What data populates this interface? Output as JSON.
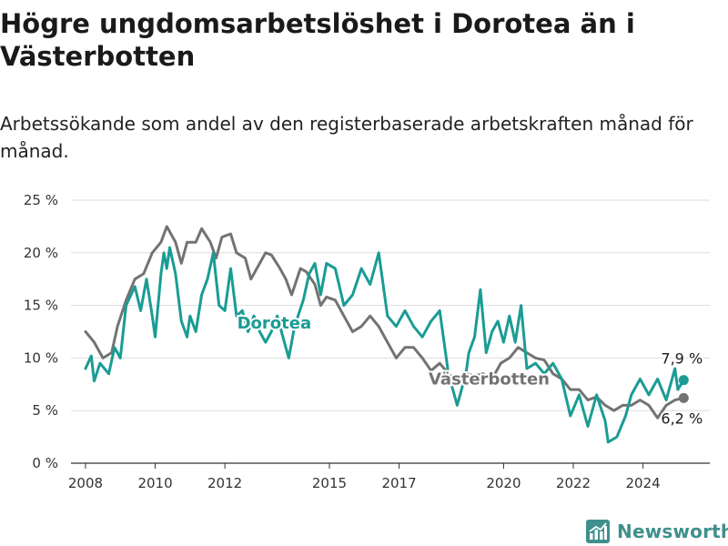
{
  "header": {
    "title": "Högre ungdomsarbetslöshet i Dorotea än i Västerbotten",
    "subtitle": "Arbetssökande som andel av den registerbaserade arbetskraften månad för månad."
  },
  "branding": {
    "name": "Newsworthy"
  },
  "chart_data": {
    "type": "line",
    "title": "Högre ungdomsarbetslöshet i Dorotea än i Västerbotten",
    "subtitle": "Arbetssökande som andel av den registerbaserade arbetskraften månad för månad.",
    "xlabel": "",
    "ylabel": "",
    "x_ticks": [
      "2008",
      "2010",
      "2012",
      "2015",
      "2017",
      "2020",
      "2022",
      "2024"
    ],
    "y_ticks": [
      "0 %",
      "5 %",
      "10 %",
      "15 %",
      "20 %",
      "25 %"
    ],
    "ylim": [
      0,
      25
    ],
    "xlim": [
      "2007-08",
      "2025-12"
    ],
    "grid": true,
    "legend": "inline labels",
    "series": [
      {
        "name": "Västerbotten",
        "color": "#737373",
        "end_label": "6,2 %",
        "points": [
          [
            "2008-01",
            12.5
          ],
          [
            "2008-04",
            11.5
          ],
          [
            "2008-07",
            10.0
          ],
          [
            "2008-10",
            10.5
          ],
          [
            "2008-12",
            13.0
          ],
          [
            "2009-03",
            15.5
          ],
          [
            "2009-06",
            17.5
          ],
          [
            "2009-09",
            18.0
          ],
          [
            "2009-12",
            20.0
          ],
          [
            "2010-03",
            21.0
          ],
          [
            "2010-05",
            22.5
          ],
          [
            "2010-08",
            21.0
          ],
          [
            "2010-10",
            19.0
          ],
          [
            "2010-12",
            21.0
          ],
          [
            "2011-03",
            21.0
          ],
          [
            "2011-05",
            22.3
          ],
          [
            "2011-08",
            21.0
          ],
          [
            "2011-10",
            19.5
          ],
          [
            "2011-12",
            21.5
          ],
          [
            "2012-03",
            21.8
          ],
          [
            "2012-05",
            20.0
          ],
          [
            "2012-08",
            19.5
          ],
          [
            "2012-10",
            17.5
          ],
          [
            "2012-12",
            18.5
          ],
          [
            "2013-03",
            20.0
          ],
          [
            "2013-05",
            19.8
          ],
          [
            "2013-08",
            18.5
          ],
          [
            "2013-10",
            17.5
          ],
          [
            "2013-12",
            16.0
          ],
          [
            "2014-03",
            18.5
          ],
          [
            "2014-05",
            18.2
          ],
          [
            "2014-08",
            17.0
          ],
          [
            "2014-10",
            15.0
          ],
          [
            "2014-12",
            15.8
          ],
          [
            "2015-03",
            15.5
          ],
          [
            "2015-06",
            14.0
          ],
          [
            "2015-09",
            12.5
          ],
          [
            "2015-12",
            13.0
          ],
          [
            "2016-03",
            14.0
          ],
          [
            "2016-06",
            13.0
          ],
          [
            "2016-09",
            11.5
          ],
          [
            "2016-12",
            10.0
          ],
          [
            "2017-03",
            11.0
          ],
          [
            "2017-06",
            11.0
          ],
          [
            "2017-09",
            10.0
          ],
          [
            "2017-12",
            8.8
          ],
          [
            "2018-03",
            9.5
          ],
          [
            "2018-06",
            8.5
          ],
          [
            "2018-09",
            7.7
          ],
          [
            "2018-12",
            8.5
          ],
          [
            "2019-03",
            8.3
          ],
          [
            "2019-06",
            8.5
          ],
          [
            "2019-09",
            8.0
          ],
          [
            "2019-12",
            9.5
          ],
          [
            "2020-03",
            10.0
          ],
          [
            "2020-06",
            11.0
          ],
          [
            "2020-09",
            10.5
          ],
          [
            "2020-12",
            10.0
          ],
          [
            "2021-03",
            9.8
          ],
          [
            "2021-06",
            8.5
          ],
          [
            "2021-09",
            8.0
          ],
          [
            "2021-12",
            7.0
          ],
          [
            "2022-03",
            7.0
          ],
          [
            "2022-06",
            6.0
          ],
          [
            "2022-09",
            6.3
          ],
          [
            "2022-12",
            5.5
          ],
          [
            "2023-03",
            5.0
          ],
          [
            "2023-06",
            5.5
          ],
          [
            "2023-09",
            5.5
          ],
          [
            "2023-12",
            6.0
          ],
          [
            "2024-03",
            5.5
          ],
          [
            "2024-06",
            4.3
          ],
          [
            "2024-09",
            5.5
          ],
          [
            "2024-12",
            6.0
          ],
          [
            "2025-03",
            6.2
          ]
        ]
      },
      {
        "name": "Dorotea",
        "color": "#1a9c94",
        "end_label": "7,9 %",
        "points": [
          [
            "2008-01",
            9.0
          ],
          [
            "2008-03",
            10.2
          ],
          [
            "2008-04",
            7.8
          ],
          [
            "2008-06",
            9.5
          ],
          [
            "2008-09",
            8.5
          ],
          [
            "2008-11",
            11.0
          ],
          [
            "2009-01",
            10.0
          ],
          [
            "2009-03",
            15.0
          ],
          [
            "2009-06",
            16.8
          ],
          [
            "2009-08",
            14.5
          ],
          [
            "2009-10",
            17.5
          ],
          [
            "2009-12",
            14.0
          ],
          [
            "2010-01",
            12.0
          ],
          [
            "2010-03",
            18.0
          ],
          [
            "2010-04",
            20.0
          ],
          [
            "2010-05",
            18.5
          ],
          [
            "2010-06",
            20.5
          ],
          [
            "2010-08",
            18.0
          ],
          [
            "2010-10",
            13.5
          ],
          [
            "2010-12",
            12.0
          ],
          [
            "2011-01",
            14.0
          ],
          [
            "2011-03",
            12.5
          ],
          [
            "2011-05",
            16.0
          ],
          [
            "2011-07",
            17.5
          ],
          [
            "2011-09",
            20.0
          ],
          [
            "2011-11",
            15.0
          ],
          [
            "2012-01",
            14.5
          ],
          [
            "2012-03",
            18.5
          ],
          [
            "2012-05",
            14.0
          ],
          [
            "2012-07",
            14.5
          ],
          [
            "2012-09",
            12.5
          ],
          [
            "2012-11",
            14.0
          ],
          [
            "2013-01",
            12.5
          ],
          [
            "2013-03",
            11.5
          ],
          [
            "2013-05",
            12.5
          ],
          [
            "2013-07",
            14.0
          ],
          [
            "2013-09",
            12.0
          ],
          [
            "2013-11",
            10.0
          ],
          [
            "2014-01",
            13.0
          ],
          [
            "2014-04",
            15.5
          ],
          [
            "2014-06",
            18.0
          ],
          [
            "2014-08",
            19.0
          ],
          [
            "2014-10",
            16.0
          ],
          [
            "2014-12",
            19.0
          ],
          [
            "2015-03",
            18.5
          ],
          [
            "2015-06",
            15.0
          ],
          [
            "2015-09",
            16.0
          ],
          [
            "2015-12",
            18.5
          ],
          [
            "2016-03",
            17.0
          ],
          [
            "2016-06",
            20.0
          ],
          [
            "2016-09",
            14.0
          ],
          [
            "2016-12",
            13.0
          ],
          [
            "2017-03",
            14.5
          ],
          [
            "2017-06",
            13.0
          ],
          [
            "2017-09",
            12.0
          ],
          [
            "2017-12",
            13.5
          ],
          [
            "2018-03",
            14.5
          ],
          [
            "2018-06",
            8.5
          ],
          [
            "2018-09",
            5.5
          ],
          [
            "2018-12",
            8.5
          ],
          [
            "2019-01",
            10.5
          ],
          [
            "2019-03",
            12.0
          ],
          [
            "2019-05",
            16.5
          ],
          [
            "2019-07",
            10.5
          ],
          [
            "2019-09",
            12.5
          ],
          [
            "2019-11",
            13.5
          ],
          [
            "2020-01",
            11.5
          ],
          [
            "2020-03",
            14.0
          ],
          [
            "2020-05",
            11.5
          ],
          [
            "2020-07",
            15.0
          ],
          [
            "2020-09",
            9.0
          ],
          [
            "2020-12",
            9.5
          ],
          [
            "2021-03",
            8.5
          ],
          [
            "2021-06",
            9.5
          ],
          [
            "2021-09",
            8.0
          ],
          [
            "2021-12",
            4.5
          ],
          [
            "2022-03",
            6.5
          ],
          [
            "2022-06",
            3.5
          ],
          [
            "2022-09",
            6.5
          ],
          [
            "2022-12",
            4.0
          ],
          [
            "2023-01",
            2.0
          ],
          [
            "2023-04",
            2.5
          ],
          [
            "2023-07",
            4.5
          ],
          [
            "2023-09",
            6.5
          ],
          [
            "2023-12",
            8.0
          ],
          [
            "2024-03",
            6.5
          ],
          [
            "2024-06",
            8.0
          ],
          [
            "2024-09",
            6.0
          ],
          [
            "2024-12",
            9.0
          ],
          [
            "2025-01",
            7.0
          ],
          [
            "2025-03",
            7.9
          ]
        ]
      }
    ]
  }
}
